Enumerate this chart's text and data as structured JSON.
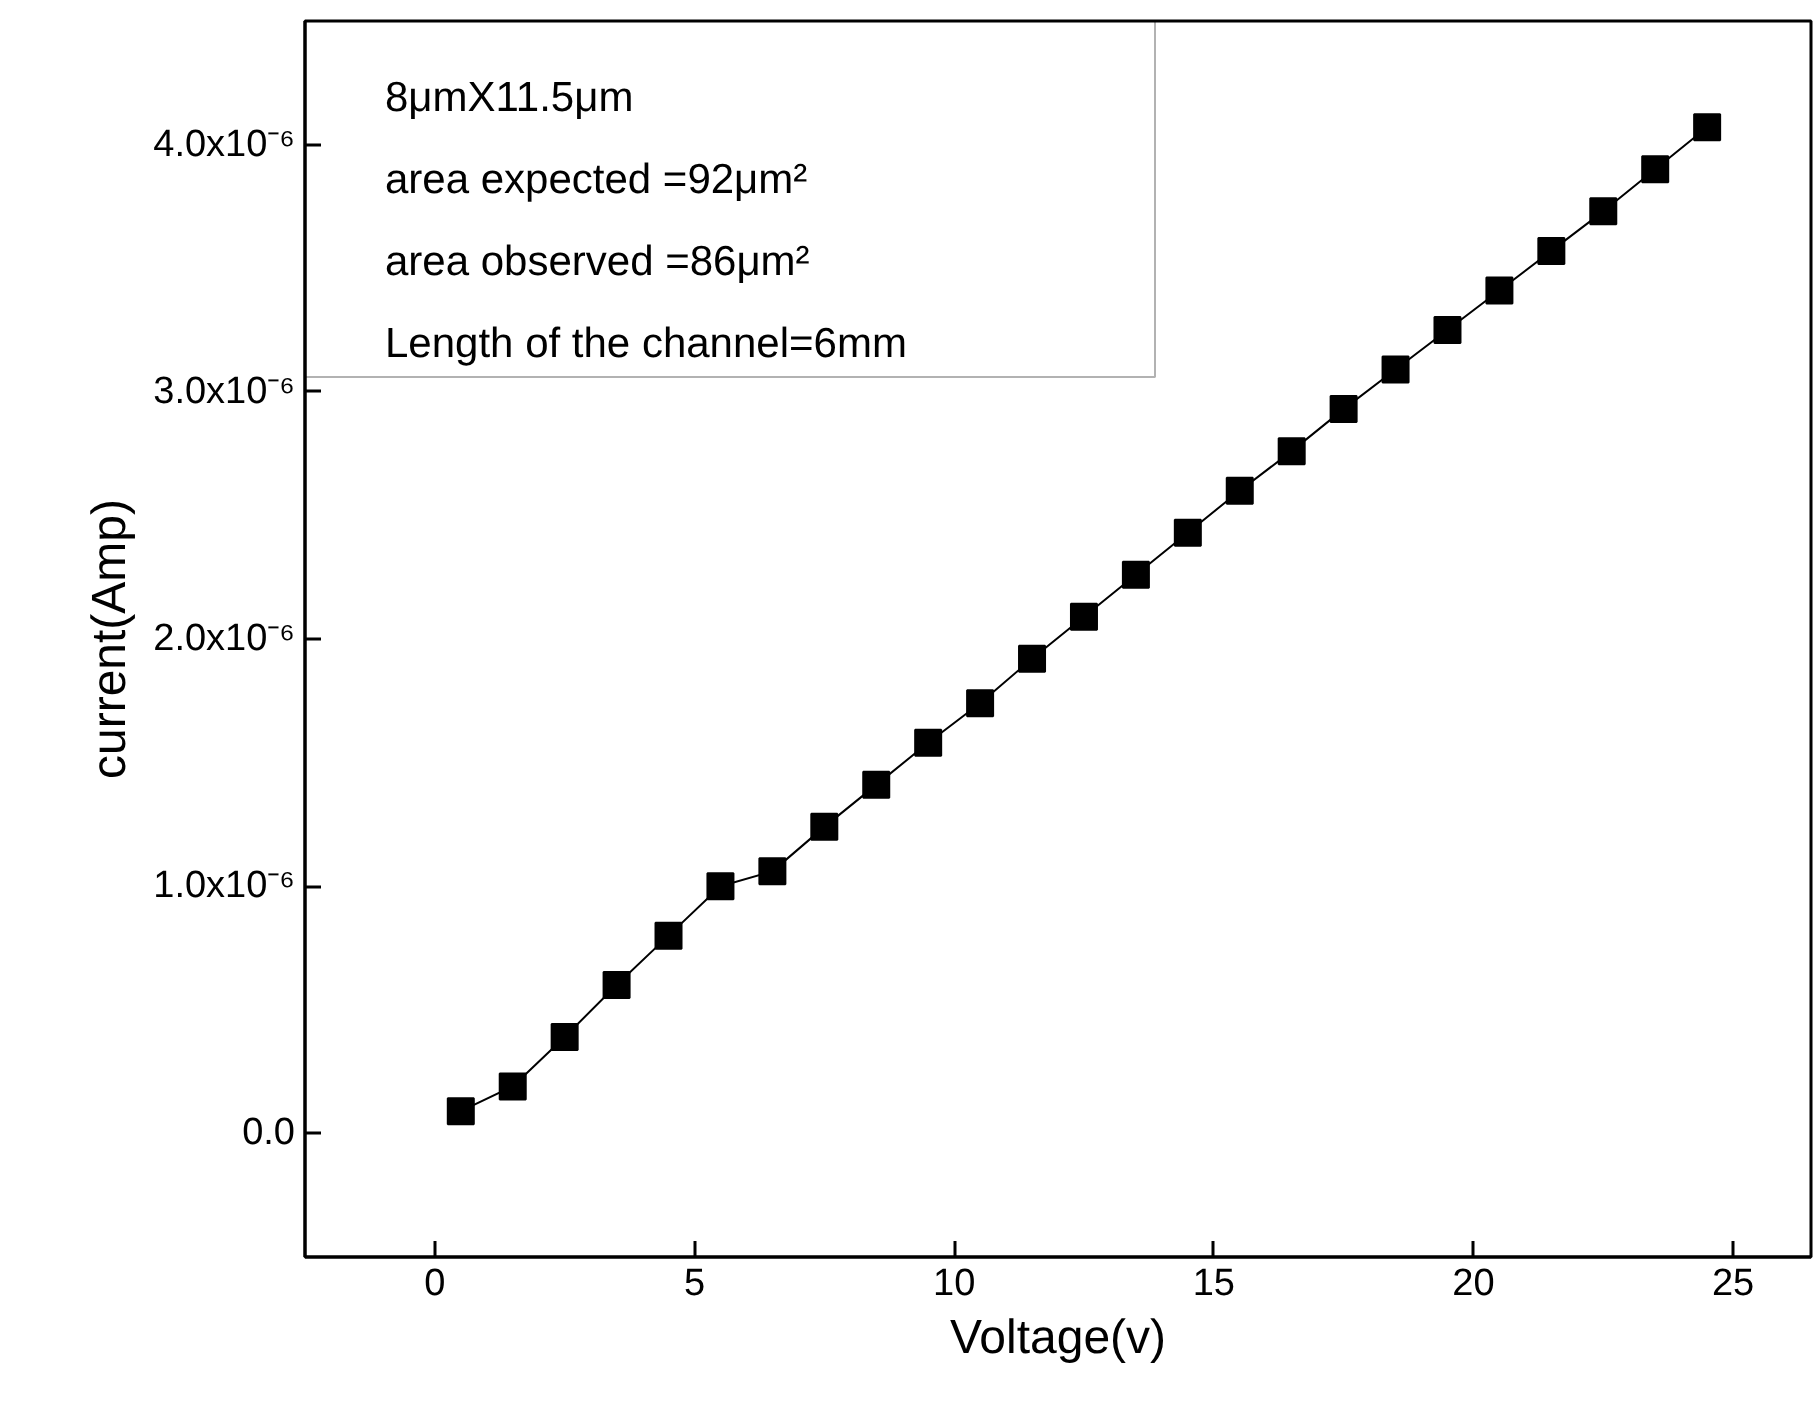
{
  "chart_data": {
    "type": "line",
    "xlabel": "Voltage(v)",
    "ylabel": "current(Amp)",
    "x": [
      0.5,
      1.5,
      2.5,
      3.5,
      4.5,
      5.5,
      6.5,
      7.5,
      8.5,
      9.5,
      10.5,
      11.5,
      12.5,
      13.5,
      14.5,
      15.5,
      16.5,
      17.5,
      18.5,
      19.5,
      20.5,
      21.5,
      22.5,
      23.5,
      24.5
    ],
    "series": [
      {
        "color": "#000000",
        "values": [
          9e-08,
          1.9e-07,
          3.9e-07,
          6e-07,
          8e-07,
          1e-06,
          1.06e-06,
          1.24e-06,
          1.41e-06,
          1.58e-06,
          1.74e-06,
          1.92e-06,
          2.09e-06,
          2.26e-06,
          2.43e-06,
          2.6e-06,
          2.76e-06,
          2.93e-06,
          3.09e-06,
          3.25e-06,
          3.41e-06,
          3.57e-06,
          3.73e-06,
          3.9e-06,
          4.07e-06
        ]
      }
    ],
    "xlim": [
      -2.5,
      26.5
    ],
    "ylim": [
      -5e-07,
      4.5e-06
    ],
    "xticks": [
      0,
      5,
      10,
      15,
      20,
      25
    ],
    "yticks": [
      {
        "value": 0,
        "label": "0.0"
      },
      {
        "value": 1e-06,
        "label": "1.0x10⁻⁶"
      },
      {
        "value": 2e-06,
        "label": "2.0x10⁻⁶"
      },
      {
        "value": 3e-06,
        "label": "3.0x10⁻⁶"
      },
      {
        "value": 4e-06,
        "label": "4.0x10⁻⁶"
      }
    ],
    "marker": "square",
    "line_style": "solid",
    "grid": false,
    "annotations": [
      "8μmX11.5μm",
      "area expected =92μm²",
      "area observed =86μm²",
      "Length of the channel=6mm"
    ]
  }
}
